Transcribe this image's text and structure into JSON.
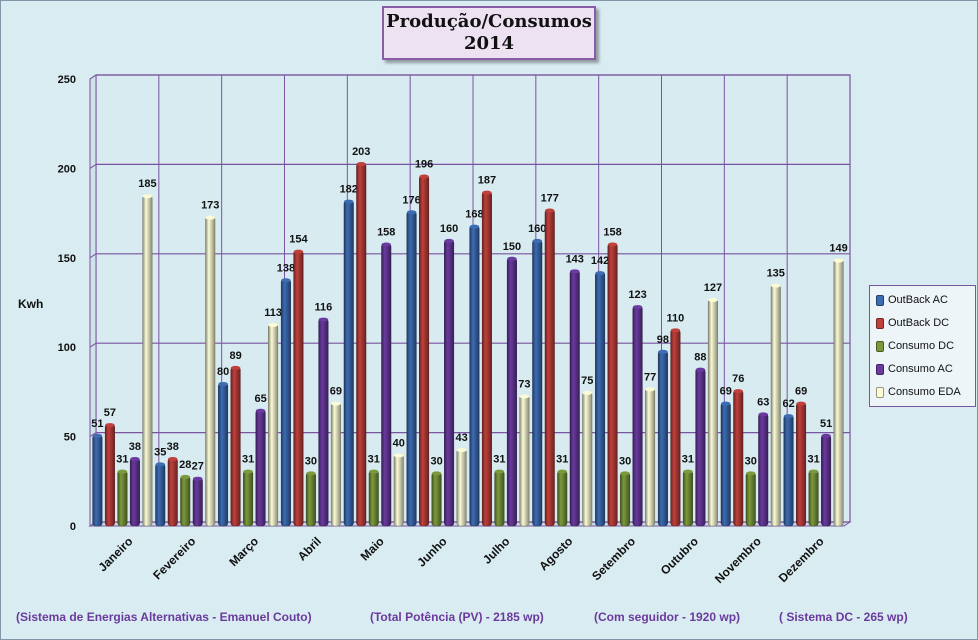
{
  "title_line1": "Produção/Consumos",
  "title_line2": "2014",
  "chart_data": {
    "type": "bar",
    "title": "Produção/Consumos 2014",
    "ylabel": "Kwh",
    "ylim": [
      0,
      250
    ],
    "yticks": [
      0,
      50,
      100,
      150,
      200,
      250
    ],
    "grid": true,
    "legend_position": "right",
    "categories": [
      "Janeiro",
      "Fevereiro",
      "Março",
      "Abril",
      "Maio",
      "Junho",
      "Julho",
      "Agosto",
      "Setembro",
      "Outubro",
      "Novembro",
      "Dezembro"
    ],
    "series": [
      {
        "name": "OutBack AC",
        "color": "#3c6cb4",
        "values": [
          51,
          35,
          80,
          138,
          182,
          176,
          168,
          160,
          142,
          98,
          69,
          62
        ]
      },
      {
        "name": "OutBack DC",
        "color": "#c0403c",
        "values": [
          57,
          38,
          89,
          154,
          203,
          196,
          187,
          177,
          158,
          110,
          76,
          69
        ]
      },
      {
        "name": "Consumo DC",
        "color": "#7c9a3c",
        "values": [
          31,
          28,
          31,
          30,
          31,
          30,
          31,
          31,
          30,
          31,
          30,
          31
        ]
      },
      {
        "name": "Consumo AC",
        "color": "#6a3aa0",
        "values": [
          38,
          27,
          65,
          116,
          158,
          160,
          150,
          143,
          123,
          88,
          63,
          51
        ]
      },
      {
        "name": "Consumo EDA",
        "color": "#fbfbd6",
        "values": [
          185,
          173,
          113,
          69,
          40,
          43,
          73,
          75,
          77,
          127,
          135,
          149
        ]
      }
    ]
  },
  "footer": {
    "system": "(Sistema de Energias Alternativas - Emanuel Couto)",
    "total": "(Total Potência (PV) - 2185 wp)",
    "tracker": "(Com seguidor - 1920 wp)",
    "dc": "( Sistema DC - 265 wp)"
  }
}
